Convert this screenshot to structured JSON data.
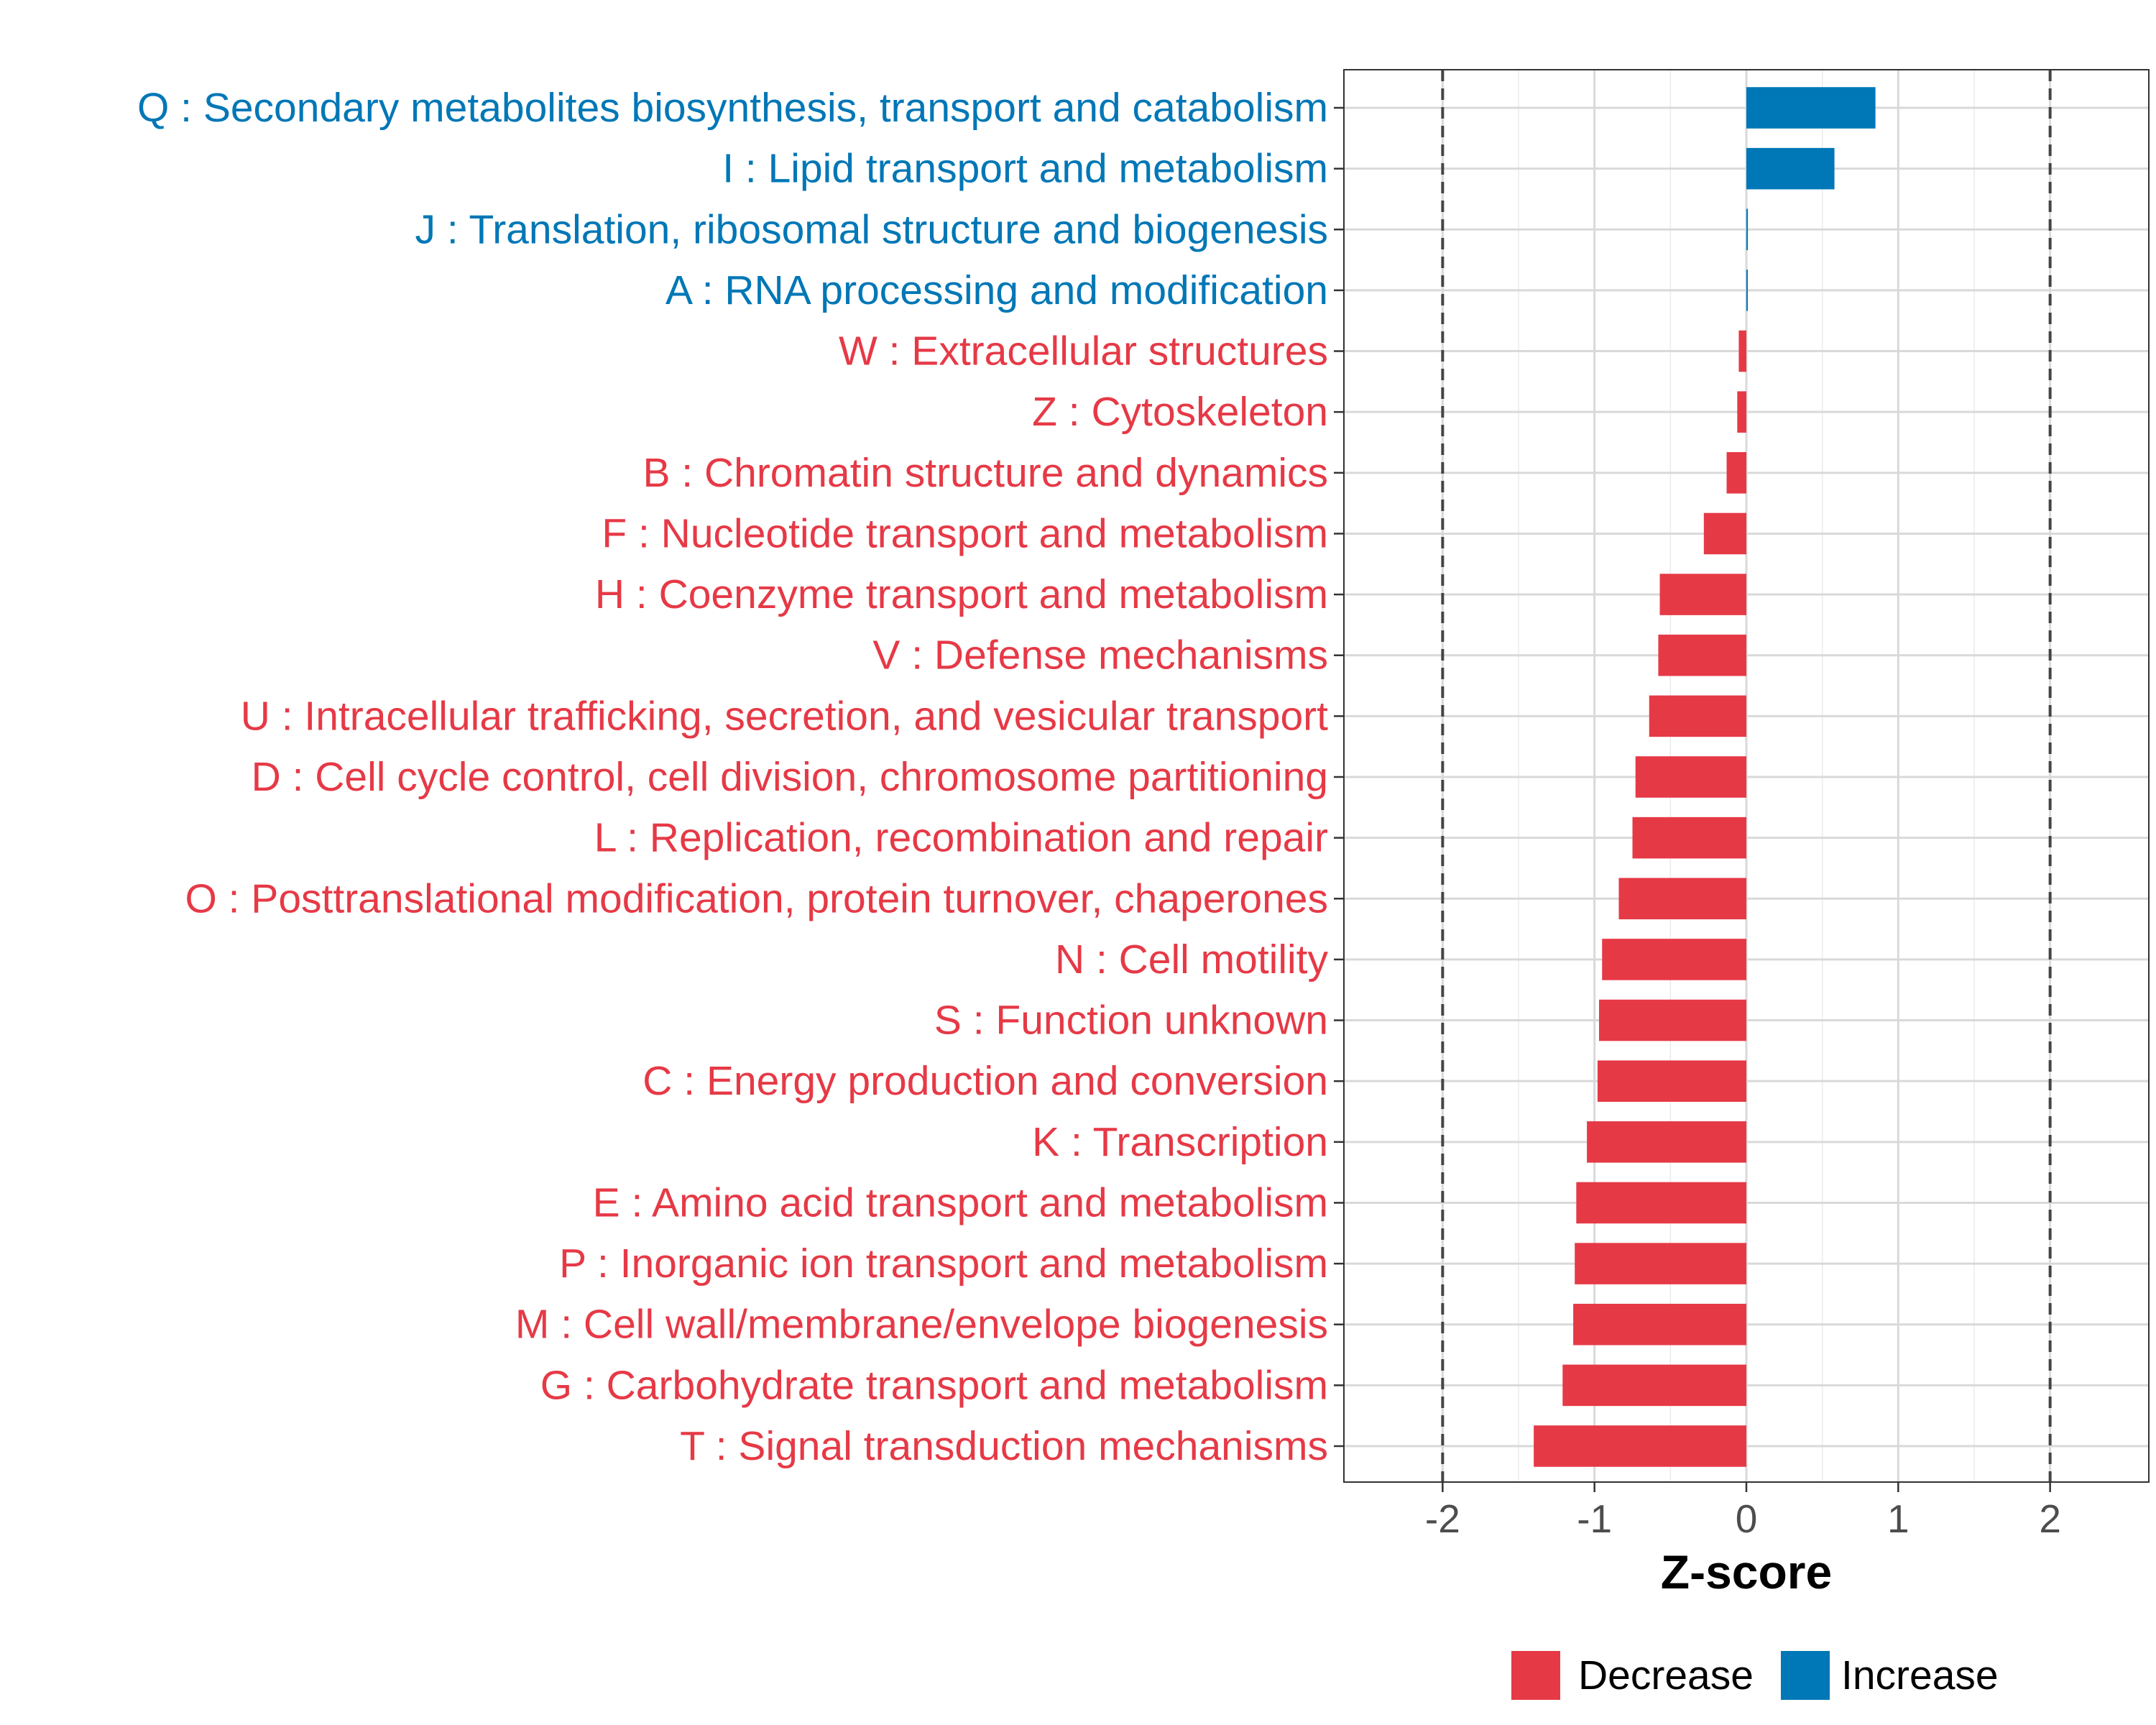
{
  "chart_data": {
    "type": "bar",
    "orientation": "horizontal",
    "xlabel": "Z-score",
    "xlim": [
      -2.65,
      2.65
    ],
    "x_ticks": [
      -2,
      -1,
      0,
      1,
      2
    ],
    "x_tick_labels": [
      "-2",
      "-1",
      "0",
      "1",
      "2"
    ],
    "reference_lines": [
      -2,
      2
    ],
    "grid": true,
    "legend_position": "bottom",
    "colors": {
      "Decrease": "#E63946",
      "Increase": "#0077B6"
    },
    "legend": [
      {
        "label": "Decrease",
        "color": "#E63946"
      },
      {
        "label": "Increase",
        "color": "#0077B6"
      }
    ],
    "categories": [
      {
        "label": "Q : Secondary metabolites biosynthesis, transport and catabolism",
        "value": 0.85,
        "direction": "Increase"
      },
      {
        "label": "I : Lipid transport and metabolism",
        "value": 0.58,
        "direction": "Increase"
      },
      {
        "label": "J : Translation, ribosomal structure and biogenesis",
        "value": 0.01,
        "direction": "Increase"
      },
      {
        "label": "A : RNA processing and modification",
        "value": 0.005,
        "direction": "Increase"
      },
      {
        "label": "W : Extracellular structures",
        "value": -0.05,
        "direction": "Decrease"
      },
      {
        "label": "Z : Cytoskeleton",
        "value": -0.06,
        "direction": "Decrease"
      },
      {
        "label": "B : Chromatin structure and dynamics",
        "value": -0.13,
        "direction": "Decrease"
      },
      {
        "label": "F : Nucleotide transport and metabolism",
        "value": -0.28,
        "direction": "Decrease"
      },
      {
        "label": "H : Coenzyme transport and metabolism",
        "value": -0.57,
        "direction": "Decrease"
      },
      {
        "label": "V : Defense mechanisms",
        "value": -0.58,
        "direction": "Decrease"
      },
      {
        "label": "U : Intracellular trafficking, secretion, and vesicular transport",
        "value": -0.64,
        "direction": "Decrease"
      },
      {
        "label": "D : Cell cycle control, cell division, chromosome partitioning",
        "value": -0.73,
        "direction": "Decrease"
      },
      {
        "label": "L : Replication, recombination and repair",
        "value": -0.75,
        "direction": "Decrease"
      },
      {
        "label": "O : Posttranslational modification, protein turnover, chaperones",
        "value": -0.84,
        "direction": "Decrease"
      },
      {
        "label": "N : Cell motility",
        "value": -0.95,
        "direction": "Decrease"
      },
      {
        "label": "S : Function unknown",
        "value": -0.97,
        "direction": "Decrease"
      },
      {
        "label": "C : Energy production and conversion",
        "value": -0.98,
        "direction": "Decrease"
      },
      {
        "label": "K : Transcription",
        "value": -1.05,
        "direction": "Decrease"
      },
      {
        "label": "E : Amino acid transport and metabolism",
        "value": -1.12,
        "direction": "Decrease"
      },
      {
        "label": "P : Inorganic ion transport and metabolism",
        "value": -1.13,
        "direction": "Decrease"
      },
      {
        "label": "M : Cell wall/membrane/envelope biogenesis",
        "value": -1.14,
        "direction": "Decrease"
      },
      {
        "label": "G : Carbohydrate transport and metabolism",
        "value": -1.21,
        "direction": "Decrease"
      },
      {
        "label": "T : Signal transduction mechanisms",
        "value": -1.4,
        "direction": "Decrease"
      }
    ]
  }
}
